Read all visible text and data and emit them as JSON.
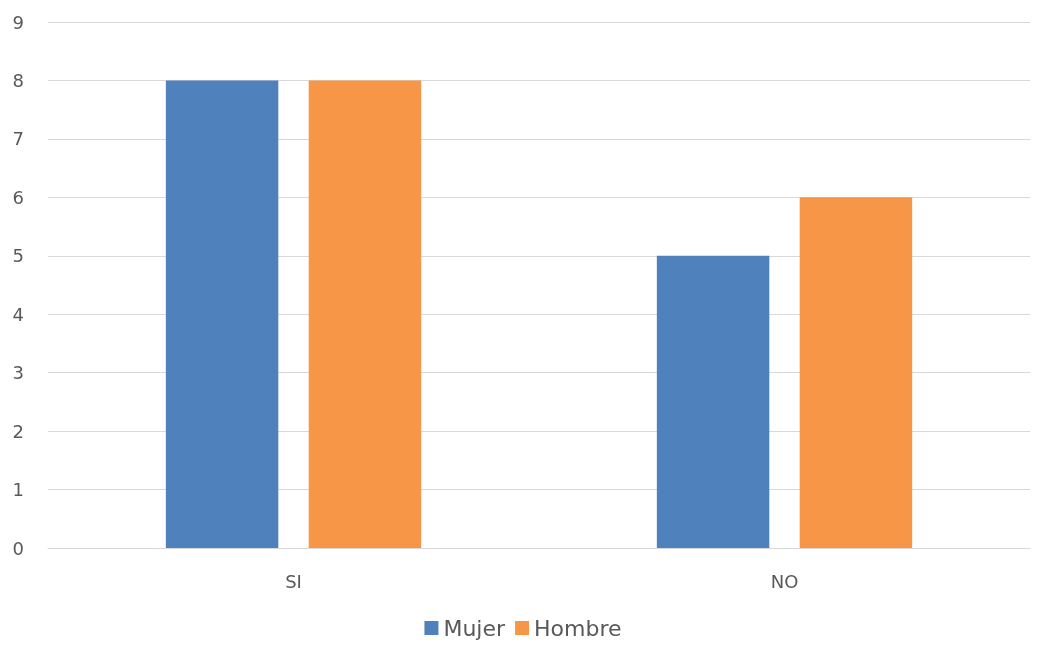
{
  "chart_data": {
    "type": "bar",
    "categories": [
      "SI",
      "NO"
    ],
    "series": [
      {
        "name": "Mujer",
        "color": "#4f81bd",
        "values": [
          8,
          5
        ]
      },
      {
        "name": "Hombre",
        "color": "#f79646",
        "values": [
          8,
          6
        ]
      }
    ],
    "ylim": [
      0,
      9
    ],
    "yticks": [
      0,
      1,
      2,
      3,
      4,
      5,
      6,
      7,
      8,
      9
    ],
    "grid": "y",
    "legend": "bottom"
  }
}
